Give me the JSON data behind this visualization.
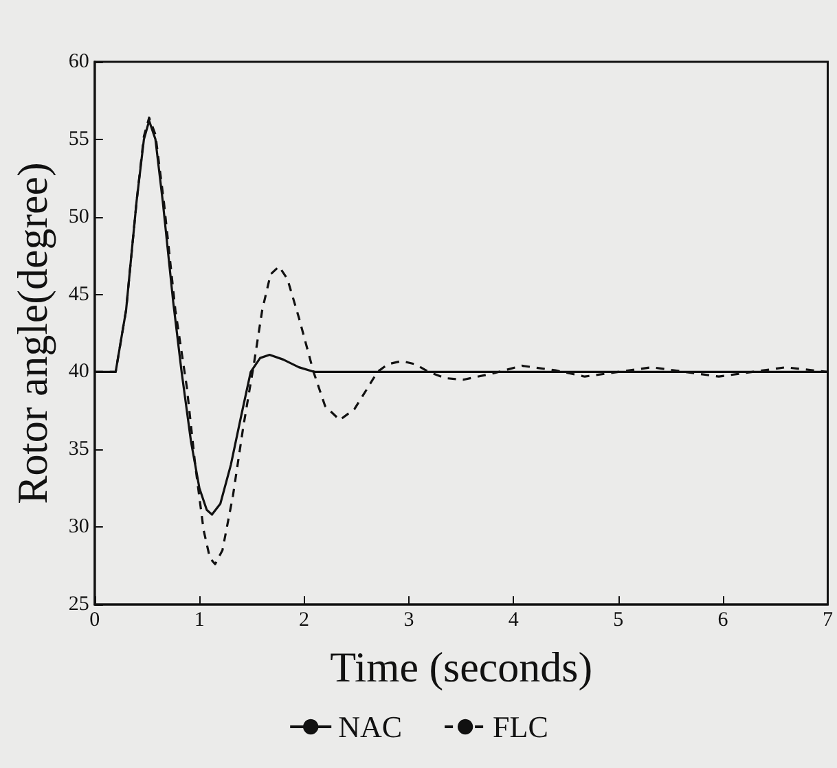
{
  "chart_data": {
    "type": "line",
    "xlabel": "Time (seconds)",
    "ylabel": "Rotor angle(degree)",
    "xlim": [
      0,
      7
    ],
    "xticks": [
      0,
      1,
      2,
      3,
      4,
      5,
      6,
      7
    ],
    "ylim": [
      25,
      60
    ],
    "yticks": [
      25,
      30,
      35,
      40,
      45,
      50,
      55,
      60
    ],
    "grid": false,
    "legend": "bottom",
    "marker": "none",
    "series": [
      {
        "name": "NAC",
        "color": "#111111",
        "line_style": "solid",
        "x": [
          0,
          0.2,
          0.3,
          0.4,
          0.47,
          0.52,
          0.58,
          0.65,
          0.75,
          0.83,
          0.92,
          1.0,
          1.07,
          1.12,
          1.2,
          1.3,
          1.4,
          1.49,
          1.58,
          1.67,
          1.8,
          1.95,
          2.1,
          3,
          5,
          7
        ],
        "values": [
          40,
          40,
          44,
          51,
          55,
          56.2,
          55,
          51,
          44.5,
          40,
          35.5,
          32.5,
          31.1,
          30.8,
          31.5,
          34,
          37.2,
          40,
          40.9,
          41.1,
          40.8,
          40.3,
          40,
          40,
          40,
          40
        ]
      },
      {
        "name": "FLC",
        "color": "#111111",
        "line_style": "dashed",
        "x": [
          0,
          0.2,
          0.3,
          0.4,
          0.47,
          0.52,
          0.58,
          0.66,
          0.77,
          0.88,
          0.96,
          1.04,
          1.1,
          1.15,
          1.22,
          1.32,
          1.42,
          1.52,
          1.6,
          1.68,
          1.76,
          1.84,
          1.95,
          2.09,
          2.2,
          2.34,
          2.48,
          2.6,
          2.7,
          2.8,
          2.93,
          3.06,
          3.19,
          3.35,
          3.52,
          3.8,
          4.08,
          4.4,
          4.68,
          5.0,
          5.32,
          5.64,
          5.96,
          6.28,
          6.6,
          7
        ],
        "values": [
          40,
          40,
          44,
          51,
          55.2,
          56.4,
          55.3,
          51,
          44,
          39,
          34,
          29.8,
          28,
          27.6,
          28.5,
          32,
          36.5,
          40.5,
          44,
          46.3,
          46.8,
          46,
          43.5,
          40,
          37.8,
          36.9,
          37.6,
          38.9,
          40,
          40.5,
          40.7,
          40.5,
          40,
          39.6,
          39.5,
          39.9,
          40.4,
          40.1,
          39.7,
          40,
          40.3,
          40,
          39.7,
          40,
          40.3,
          40
        ]
      }
    ]
  }
}
